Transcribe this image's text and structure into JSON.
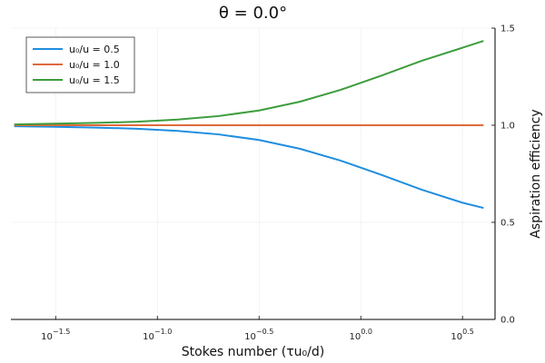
{
  "chart_data": {
    "type": "line",
    "title": "θ = 0.0°",
    "xlabel": "Stokes number (τu₀/d)",
    "ylabel": "Aspiration efficiency",
    "x_scale": "log10",
    "xlim_log10": [
      -1.72,
      0.66
    ],
    "ylim": [
      0.0,
      1.5
    ],
    "x_ticks": [
      {
        "exp": -1.5,
        "base": "10",
        "sup": "−1.5"
      },
      {
        "exp": -1.0,
        "base": "10",
        "sup": "−1.0"
      },
      {
        "exp": -0.5,
        "base": "10",
        "sup": "−0.5"
      },
      {
        "exp": 0.0,
        "base": "10",
        "sup": "0.0"
      },
      {
        "exp": 0.5,
        "base": "10",
        "sup": "0.5"
      }
    ],
    "y_ticks": [
      "0.0",
      "0.5",
      "1.0",
      "1.5"
    ],
    "y_tick_values": [
      0.0,
      0.5,
      1.0,
      1.5
    ],
    "y_axis_side": "right",
    "grid": true,
    "legend_position": "top-left",
    "x_log10": [
      -1.7,
      -1.5,
      -1.3,
      -1.1,
      -0.9,
      -0.7,
      -0.5,
      -0.3,
      -0.1,
      0.1,
      0.3,
      0.5,
      0.6
    ],
    "series": [
      {
        "name": "u₀/u = 0.5",
        "color": "#1f8ee0",
        "values": [
          0.995,
          0.992,
          0.988,
          0.982,
          0.971,
          0.953,
          0.924,
          0.879,
          0.818,
          0.745,
          0.668,
          0.601,
          0.575
        ]
      },
      {
        "name": "u₀/u = 1.0",
        "color": "#e06a3c",
        "values": [
          1.0,
          1.0,
          1.0,
          1.0,
          1.0,
          1.0,
          1.0,
          1.0,
          1.0,
          1.0,
          1.0,
          1.0,
          1.0
        ]
      },
      {
        "name": "u₀/u = 1.5",
        "color": "#3d9d3d",
        "values": [
          1.004,
          1.008,
          1.012,
          1.018,
          1.029,
          1.047,
          1.076,
          1.121,
          1.182,
          1.255,
          1.332,
          1.399,
          1.433
        ]
      }
    ]
  }
}
